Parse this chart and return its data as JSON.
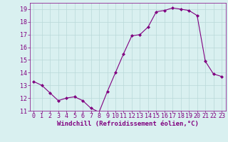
{
  "x": [
    0,
    1,
    2,
    3,
    4,
    5,
    6,
    7,
    8,
    9,
    10,
    11,
    12,
    13,
    14,
    15,
    16,
    17,
    18,
    19,
    20,
    21,
    22,
    23
  ],
  "y": [
    13.3,
    13.0,
    12.4,
    11.8,
    12.0,
    12.1,
    11.8,
    11.2,
    10.9,
    12.5,
    14.0,
    15.5,
    16.9,
    17.0,
    17.6,
    18.8,
    18.9,
    19.1,
    19.0,
    18.9,
    18.5,
    14.9,
    13.9,
    13.7
  ],
  "line_color": "#800080",
  "marker": "D",
  "marker_size": 2.0,
  "bg_color": "#d9f0f0",
  "grid_color": "#b8d8d8",
  "xlabel": "Windchill (Refroidissement éolien,°C)",
  "ylim": [
    11,
    19.5
  ],
  "xlim": [
    -0.5,
    23.5
  ],
  "yticks": [
    11,
    12,
    13,
    14,
    15,
    16,
    17,
    18,
    19
  ],
  "xticks": [
    0,
    1,
    2,
    3,
    4,
    5,
    6,
    7,
    8,
    9,
    10,
    11,
    12,
    13,
    14,
    15,
    16,
    17,
    18,
    19,
    20,
    21,
    22,
    23
  ],
  "tick_color": "#800080",
  "label_color": "#800080",
  "font_size_xlabel": 6.5,
  "font_size_ticks": 6.0,
  "linewidth": 0.8
}
